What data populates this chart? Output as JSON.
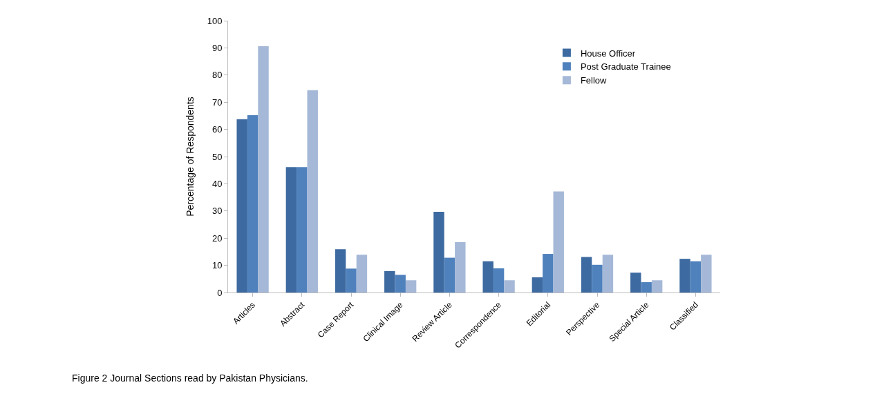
{
  "chart_data": {
    "type": "bar",
    "ylabel": "Percentage of Respondents",
    "categories": [
      "Articles",
      "Abstract",
      "Case Report",
      "Clinical Image",
      "Review Article",
      "Correspondence",
      "Editorial",
      "Perspective",
      "Special Article",
      "Classified"
    ],
    "series": [
      {
        "name": "House Officer",
        "color": "#3d6aa0",
        "values": [
          63.8,
          46.1,
          15.9,
          7.9,
          29.7,
          11.5,
          5.6,
          13.1,
          7.3,
          12.4
        ]
      },
      {
        "name": "Post Graduate Trainee",
        "color": "#4f81bd",
        "values": [
          65.2,
          46.1,
          8.8,
          6.5,
          12.8,
          8.9,
          14.2,
          10.2,
          3.8,
          11.5
        ]
      },
      {
        "name": "Fellow",
        "color": "#a5b8d7",
        "values": [
          90.6,
          74.4,
          13.9,
          4.5,
          18.5,
          4.5,
          37.2,
          13.9,
          4.5,
          13.9
        ]
      }
    ],
    "ylim": [
      0,
      100
    ],
    "yticks": [
      0,
      10,
      20,
      30,
      40,
      50,
      60,
      70,
      80,
      90,
      100
    ],
    "legend": "top right",
    "annotations": [
      "Figure 2 Journal Sections read by Pakistan Physicians."
    ]
  }
}
